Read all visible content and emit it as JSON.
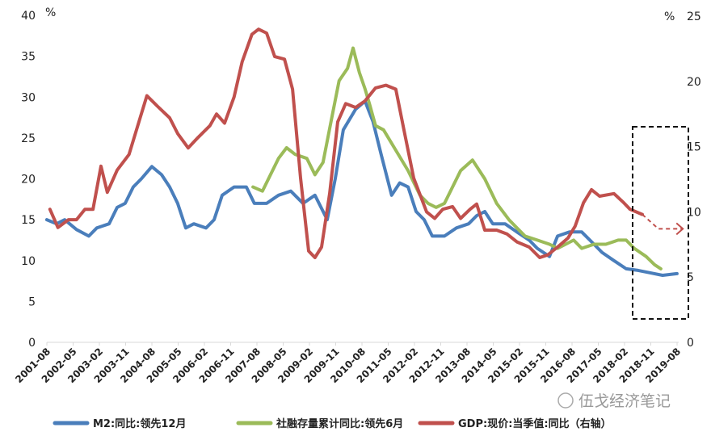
{
  "chart_data": {
    "type": "line",
    "title": "",
    "left_axis": {
      "unit_label": "%",
      "ylim": [
        0,
        40
      ],
      "ticks": [
        "0",
        "5",
        "10",
        "15",
        "20",
        "25",
        "30",
        "35",
        "40"
      ]
    },
    "right_axis": {
      "unit_label": "%",
      "ylim": [
        0,
        25
      ],
      "ticks": [
        "0",
        "5",
        "10",
        "15",
        "20",
        "25"
      ]
    },
    "x_range": [
      2001.583,
      2019.583
    ],
    "categories": [
      "2001-08",
      "2002-05",
      "2003-02",
      "2003-11",
      "2004-08",
      "2005-05",
      "2006-02",
      "2006-11",
      "2007-08",
      "2008-05",
      "2009-02",
      "2009-11",
      "2010-08",
      "2011-05",
      "2012-02",
      "2012-11",
      "2013-08",
      "2014-05",
      "2015-02",
      "2015-11",
      "2016-08",
      "2017-05",
      "2018-02",
      "2018-11",
      "2019-08"
    ],
    "grid": false,
    "legend_position": "bottom",
    "series": [
      {
        "name": "M2:同比:领先12月",
        "axis": "left",
        "color": "#4a7ebb",
        "points": [
          [
            2001.58,
            15
          ],
          [
            2001.86,
            14.5
          ],
          [
            2002.09,
            15
          ],
          [
            2002.43,
            13.8
          ],
          [
            2002.78,
            13
          ],
          [
            2003.01,
            14
          ],
          [
            2003.36,
            14.5
          ],
          [
            2003.59,
            16.5
          ],
          [
            2003.82,
            17
          ],
          [
            2004.05,
            19
          ],
          [
            2004.28,
            20
          ],
          [
            2004.58,
            21.5
          ],
          [
            2004.86,
            20.5
          ],
          [
            2005.09,
            19
          ],
          [
            2005.32,
            17
          ],
          [
            2005.55,
            14
          ],
          [
            2005.78,
            14.5
          ],
          [
            2006.13,
            14
          ],
          [
            2006.36,
            15
          ],
          [
            2006.59,
            18
          ],
          [
            2006.93,
            19
          ],
          [
            2007.28,
            19
          ],
          [
            2007.51,
            17
          ],
          [
            2007.86,
            17
          ],
          [
            2008.2,
            18
          ],
          [
            2008.55,
            18.5
          ],
          [
            2008.9,
            17
          ],
          [
            2009.24,
            18
          ],
          [
            2009.59,
            15
          ],
          [
            2009.82,
            20
          ],
          [
            2010.05,
            26
          ],
          [
            2010.4,
            28.5
          ],
          [
            2010.67,
            29.5
          ],
          [
            2010.9,
            27
          ],
          [
            2011.13,
            23
          ],
          [
            2011.43,
            18
          ],
          [
            2011.66,
            19.5
          ],
          [
            2011.9,
            19
          ],
          [
            2012.13,
            16
          ],
          [
            2012.36,
            15
          ],
          [
            2012.59,
            13
          ],
          [
            2012.94,
            13
          ],
          [
            2013.28,
            14
          ],
          [
            2013.63,
            14.5
          ],
          [
            2013.86,
            15.5
          ],
          [
            2014.09,
            16
          ],
          [
            2014.32,
            14.5
          ],
          [
            2014.67,
            14.5
          ],
          [
            2015.01,
            13.5
          ],
          [
            2015.36,
            12.5
          ],
          [
            2015.59,
            11.5
          ],
          [
            2015.94,
            10.5
          ],
          [
            2016.17,
            13
          ],
          [
            2016.51,
            13.5
          ],
          [
            2016.86,
            13.5
          ],
          [
            2017.21,
            12
          ],
          [
            2017.44,
            11
          ],
          [
            2017.78,
            10
          ],
          [
            2018.13,
            9
          ],
          [
            2018.47,
            8.8
          ],
          [
            2018.82,
            8.5
          ],
          [
            2019.17,
            8.2
          ],
          [
            2019.58,
            8.4
          ]
        ]
      },
      {
        "name": "社融存量累计同比:领先6月",
        "axis": "left",
        "color": "#9bbb59",
        "points": [
          [
            2007.47,
            19
          ],
          [
            2007.74,
            18.5
          ],
          [
            2007.97,
            20.5
          ],
          [
            2008.2,
            22.5
          ],
          [
            2008.43,
            23.8
          ],
          [
            2008.67,
            23
          ],
          [
            2009.01,
            22.5
          ],
          [
            2009.24,
            20.5
          ],
          [
            2009.47,
            22
          ],
          [
            2009.7,
            27
          ],
          [
            2009.93,
            32
          ],
          [
            2010.17,
            33.5
          ],
          [
            2010.33,
            36
          ],
          [
            2010.51,
            33
          ],
          [
            2010.67,
            31
          ],
          [
            2010.81,
            29
          ],
          [
            2010.97,
            26.5
          ],
          [
            2011.2,
            26
          ],
          [
            2011.55,
            23.5
          ],
          [
            2011.9,
            21
          ],
          [
            2012.24,
            18
          ],
          [
            2012.47,
            17
          ],
          [
            2012.7,
            16.5
          ],
          [
            2012.94,
            17
          ],
          [
            2013.17,
            19
          ],
          [
            2013.4,
            21
          ],
          [
            2013.74,
            22.3
          ],
          [
            2014.09,
            20
          ],
          [
            2014.43,
            17
          ],
          [
            2014.78,
            15
          ],
          [
            2015.01,
            14
          ],
          [
            2015.24,
            13
          ],
          [
            2015.59,
            12.5
          ],
          [
            2015.94,
            12
          ],
          [
            2016.17,
            11.5
          ],
          [
            2016.4,
            12
          ],
          [
            2016.63,
            12.5
          ],
          [
            2016.86,
            11.5
          ],
          [
            2017.21,
            12
          ],
          [
            2017.55,
            12
          ],
          [
            2017.9,
            12.5
          ],
          [
            2018.13,
            12.5
          ],
          [
            2018.36,
            11.5
          ],
          [
            2018.7,
            10.5
          ],
          [
            2018.94,
            9.5
          ],
          [
            2019.12,
            9
          ]
        ]
      },
      {
        "name": "GDP:现价:当季值:同比（右轴）",
        "axis": "right",
        "color": "#c0504d",
        "points": [
          [
            2001.67,
            10.2
          ],
          [
            2001.9,
            8.8
          ],
          [
            2002.2,
            9.4
          ],
          [
            2002.43,
            9.4
          ],
          [
            2002.67,
            10.2
          ],
          [
            2002.9,
            10.2
          ],
          [
            2003.13,
            13.5
          ],
          [
            2003.31,
            11.5
          ],
          [
            2003.59,
            13.2
          ],
          [
            2003.93,
            14.4
          ],
          [
            2004.28,
            17.5
          ],
          [
            2004.44,
            18.9
          ],
          [
            2004.74,
            18.1
          ],
          [
            2005.09,
            17.2
          ],
          [
            2005.32,
            16
          ],
          [
            2005.62,
            14.9
          ],
          [
            2005.9,
            15.7
          ],
          [
            2006.24,
            16.6
          ],
          [
            2006.43,
            17.5
          ],
          [
            2006.66,
            16.8
          ],
          [
            2006.93,
            18.8
          ],
          [
            2007.16,
            21.5
          ],
          [
            2007.44,
            23.6
          ],
          [
            2007.63,
            24
          ],
          [
            2007.86,
            23.7
          ],
          [
            2008.09,
            21.9
          ],
          [
            2008.37,
            21.7
          ],
          [
            2008.6,
            19.4
          ],
          [
            2008.83,
            12.6
          ],
          [
            2009.06,
            7
          ],
          [
            2009.24,
            6.5
          ],
          [
            2009.43,
            7.3
          ],
          [
            2009.66,
            11.4
          ],
          [
            2009.89,
            16.9
          ],
          [
            2010.12,
            18.3
          ],
          [
            2010.4,
            18
          ],
          [
            2010.67,
            18.5
          ],
          [
            2010.97,
            19.5
          ],
          [
            2011.27,
            19.7
          ],
          [
            2011.55,
            19.4
          ],
          [
            2011.78,
            16.3
          ],
          [
            2012.06,
            12.6
          ],
          [
            2012.43,
            10
          ],
          [
            2012.66,
            9.5
          ],
          [
            2012.89,
            10.2
          ],
          [
            2013.17,
            10.4
          ],
          [
            2013.4,
            9.5
          ],
          [
            2013.67,
            10.2
          ],
          [
            2013.86,
            10.6
          ],
          [
            2014.09,
            8.6
          ],
          [
            2014.43,
            8.6
          ],
          [
            2014.73,
            8.3
          ],
          [
            2015.01,
            7.7
          ],
          [
            2015.36,
            7.3
          ],
          [
            2015.66,
            6.5
          ],
          [
            2015.89,
            6.7
          ],
          [
            2016.17,
            7.3
          ],
          [
            2016.47,
            8
          ],
          [
            2016.67,
            8.9
          ],
          [
            2016.91,
            10.7
          ],
          [
            2017.14,
            11.7
          ],
          [
            2017.37,
            11.2
          ],
          [
            2017.78,
            11.4
          ],
          [
            2018.06,
            10.7
          ],
          [
            2018.24,
            10.2
          ],
          [
            2018.59,
            9.8
          ]
        ],
        "projection": [
          [
            2018.59,
            9.8
          ],
          [
            2019.05,
            8.7
          ],
          [
            2019.75,
            8.7
          ]
        ]
      }
    ],
    "watermark": "伍戈经济笔记"
  }
}
